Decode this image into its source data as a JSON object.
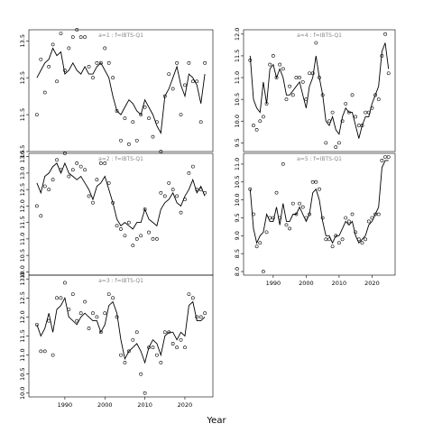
{
  "chart_data": {
    "type": "line",
    "xlabel": "Year",
    "panels": [
      {
        "title": "a=1 : f=IBTS-Q1",
        "x_ticks": [
          1990,
          2000,
          2010,
          2020
        ],
        "y_ticks": [
          10.5,
          11.5,
          12.5,
          13.5
        ],
        "y_tick_labels": [
          "10.5",
          "11.5",
          "12.5",
          "13.5"
        ],
        "xlim": [
          1981,
          2027
        ],
        "ylim": [
          10.5,
          13.8
        ],
        "points": {
          "x": [
            1983,
            1984,
            1985,
            1986,
            1987,
            1988,
            1989,
            1990,
            1991,
            1992,
            1993,
            1994,
            1995,
            1996,
            1997,
            1998,
            1999,
            2000,
            2001,
            2002,
            2003,
            2004,
            2005,
            2006,
            2007,
            2008,
            2009,
            2010,
            2011,
            2012,
            2013,
            2014,
            2015,
            2016,
            2017,
            2018,
            2019,
            2020,
            2021,
            2022,
            2023,
            2024,
            2025
          ],
          "y": [
            11.5,
            13.0,
            12.1,
            12.8,
            13.4,
            12.4,
            13.7,
            12.7,
            13.3,
            13.6,
            13.8,
            13.6,
            13.6,
            12.8,
            12.5,
            12.9,
            12.9,
            13.3,
            12.9,
            12.5,
            11.6,
            10.8,
            11.4,
            10.7,
            11.3,
            10.8,
            11.5,
            11.7,
            11.4,
            10.9,
            11.3,
            10.5,
            12.0,
            12.6,
            12.2,
            12.9,
            11.5,
            12.3,
            12.9,
            12.4,
            12.4,
            11.3,
            12.9
          ]
        },
        "line": {
          "x": [
            1983,
            1984,
            1985,
            1986,
            1987,
            1988,
            1989,
            1990,
            1991,
            1992,
            1993,
            1994,
            1995,
            1996,
            1997,
            1998,
            1999,
            2000,
            2001,
            2002,
            2003,
            2004,
            2005,
            2006,
            2007,
            2008,
            2009,
            2010,
            2011,
            2012,
            2013,
            2014,
            2015,
            2016,
            2017,
            2018,
            2019,
            2020,
            2021,
            2022,
            2023,
            2024,
            2025
          ],
          "y": [
            12.5,
            12.7,
            12.9,
            13.0,
            13.3,
            13.1,
            13.2,
            12.6,
            12.7,
            12.9,
            12.7,
            12.6,
            12.8,
            12.6,
            12.6,
            12.8,
            12.9,
            12.7,
            12.5,
            12.0,
            11.6,
            11.5,
            11.7,
            11.9,
            11.8,
            11.6,
            11.5,
            11.9,
            11.7,
            11.5,
            11.2,
            11.0,
            12.0,
            12.2,
            12.5,
            12.8,
            12.3,
            12.0,
            12.6,
            12.5,
            12.3,
            11.8,
            12.6
          ]
        }
      },
      {
        "title": "a=2 : f=IBTS-Q1",
        "x_ticks": [
          1990,
          2000,
          2010,
          2020
        ],
        "y_ticks": [
          10.0,
          10.5,
          11.0,
          11.5,
          12.0,
          12.5,
          13.0,
          13.5
        ],
        "y_tick_labels": [
          "10.0",
          "10.5",
          "11.0",
          "11.5",
          "12.0",
          "12.5",
          "13.0",
          "13.5"
        ],
        "xlim": [
          1981,
          2027
        ],
        "ylim": [
          9.9,
          13.6
        ],
        "points": {
          "x": [
            1983,
            1984,
            1985,
            1986,
            1987,
            1988,
            1989,
            1990,
            1991,
            1992,
            1993,
            1994,
            1995,
            1996,
            1997,
            1998,
            1999,
            2000,
            2001,
            2002,
            2003,
            2004,
            2005,
            2006,
            2007,
            2008,
            2009,
            2010,
            2011,
            2012,
            2013,
            2014,
            2015,
            2016,
            2017,
            2018,
            2019,
            2020,
            2021,
            2022,
            2023,
            2024,
            2025
          ],
          "y": [
            12.0,
            11.7,
            12.6,
            12.5,
            12.8,
            13.4,
            13.1,
            13.6,
            12.9,
            13.1,
            13.3,
            13.2,
            13.1,
            12.3,
            12.1,
            12.8,
            13.3,
            13.3,
            12.7,
            12.1,
            11.4,
            11.3,
            11.1,
            11.5,
            10.8,
            11.0,
            11.1,
            11.9,
            11.2,
            11.0,
            11.0,
            12.4,
            12.3,
            12.7,
            12.5,
            12.3,
            11.8,
            12.2,
            13.0,
            13.2,
            12.5,
            12.5,
            12.4
          ]
        },
        "line": {
          "x": [
            1983,
            1984,
            1985,
            1986,
            1987,
            1988,
            1989,
            1990,
            1991,
            1992,
            1993,
            1994,
            1995,
            1996,
            1997,
            1998,
            1999,
            2000,
            2001,
            2002,
            2003,
            2004,
            2005,
            2006,
            2007,
            2008,
            2009,
            2010,
            2011,
            2012,
            2013,
            2014,
            2015,
            2016,
            2017,
            2018,
            2019,
            2020,
            2021,
            2022,
            2023,
            2024,
            2025
          ],
          "y": [
            12.7,
            12.4,
            12.9,
            13.0,
            13.2,
            13.3,
            13.0,
            13.3,
            13.0,
            12.9,
            12.8,
            12.9,
            12.7,
            12.5,
            12.2,
            12.6,
            12.7,
            12.9,
            12.5,
            12.1,
            11.6,
            11.4,
            11.5,
            11.4,
            11.3,
            11.5,
            11.5,
            11.9,
            11.6,
            11.5,
            11.4,
            11.9,
            12.1,
            12.2,
            12.4,
            12.1,
            12.0,
            12.3,
            12.5,
            12.8,
            12.4,
            12.6,
            12.3
          ]
        }
      },
      {
        "title": "a=3 : f=IBTS-Q1",
        "x_ticks": [
          1990,
          2000,
          2010,
          2020
        ],
        "y_ticks": [
          10.0,
          10.5,
          11.0,
          11.5,
          12.0,
          12.5,
          13.0
        ],
        "y_tick_labels": [
          "10.0",
          "10.5",
          "11.0",
          "11.5",
          "12.0",
          "12.5",
          "13.0"
        ],
        "xlim": [
          1981,
          2027
        ],
        "ylim": [
          9.9,
          13.1
        ],
        "points": {
          "x": [
            1983,
            1984,
            1985,
            1986,
            1987,
            1988,
            1989,
            1990,
            1991,
            1992,
            1993,
            1994,
            1995,
            1996,
            1997,
            1998,
            1999,
            2000,
            2001,
            2002,
            2003,
            2004,
            2005,
            2006,
            2007,
            2008,
            2009,
            2010,
            2011,
            2012,
            2013,
            2014,
            2015,
            2016,
            2017,
            2018,
            2019,
            2020,
            2021,
            2022,
            2023,
            2024,
            2025
          ],
          "y": [
            11.8,
            11.1,
            11.1,
            11.9,
            11.0,
            12.5,
            12.5,
            12.9,
            12.2,
            12.6,
            11.9,
            12.1,
            12.4,
            11.7,
            12.1,
            12.0,
            11.6,
            12.1,
            12.6,
            12.5,
            12.0,
            11.0,
            10.8,
            11.1,
            11.4,
            11.6,
            10.5,
            10.0,
            11.2,
            11.2,
            11.0,
            10.8,
            11.6,
            11.6,
            11.3,
            11.2,
            11.4,
            11.2,
            12.6,
            12.5,
            12.0,
            12.0,
            12.1
          ]
        },
        "line": {
          "x": [
            1983,
            1984,
            1985,
            1986,
            1987,
            1988,
            1989,
            1990,
            1991,
            1992,
            1993,
            1994,
            1995,
            1996,
            1997,
            1998,
            1999,
            2000,
            2001,
            2002,
            2003,
            2004,
            2005,
            2006,
            2007,
            2008,
            2009,
            2010,
            2011,
            2012,
            2013,
            2014,
            2015,
            2016,
            2017,
            2018,
            2019,
            2020,
            2021,
            2022,
            2023,
            2024,
            2025
          ],
          "y": [
            11.8,
            11.5,
            11.7,
            12.1,
            11.6,
            12.2,
            12.3,
            12.5,
            12.0,
            11.9,
            11.8,
            12.0,
            12.1,
            12.0,
            11.9,
            11.9,
            11.6,
            11.8,
            12.3,
            12.4,
            12.1,
            11.4,
            10.9,
            11.1,
            11.2,
            11.3,
            11.1,
            10.8,
            11.2,
            11.4,
            11.3,
            11.0,
            11.5,
            11.6,
            11.6,
            11.4,
            11.6,
            11.5,
            12.3,
            12.4,
            11.9,
            11.9,
            12.0
          ]
        }
      },
      {
        "title": "a=4 : f=IBTS-Q1",
        "x_ticks": [
          1990,
          2000,
          2010,
          2020
        ],
        "y_ticks": [
          9.5,
          10.0,
          10.5,
          11.0,
          11.5,
          12.0
        ],
        "y_tick_labels": [
          "9.5",
          "10.0",
          "10.5",
          "11.0",
          "11.5",
          "12.0"
        ],
        "xlim": [
          1981,
          2027
        ],
        "ylim": [
          9.3,
          12.1
        ],
        "points": {
          "x": [
            1983,
            1984,
            1985,
            1986,
            1987,
            1988,
            1989,
            1990,
            1991,
            1992,
            1993,
            1994,
            1995,
            1996,
            1997,
            1998,
            1999,
            2000,
            2001,
            2002,
            2003,
            2004,
            2005,
            2006,
            2007,
            2008,
            2009,
            2010,
            2011,
            2012,
            2013,
            2014,
            2015,
            2016,
            2017,
            2018,
            2019,
            2020,
            2021,
            2022,
            2023,
            2024,
            2025
          ],
          "y": [
            11.4,
            9.9,
            9.8,
            10.0,
            10.1,
            10.4,
            11.3,
            11.5,
            11.0,
            11.3,
            11.2,
            10.5,
            10.8,
            10.6,
            11.0,
            11.0,
            10.9,
            10.5,
            11.1,
            11.1,
            11.8,
            11.0,
            10.6,
            9.5,
            10.0,
            10.2,
            9.4,
            9.5,
            10.0,
            10.4,
            10.2,
            10.6,
            10.1,
            9.9,
            9.9,
            10.2,
            10.2,
            10.3,
            10.6,
            10.5,
            11.5,
            12.0,
            11.1
          ]
        },
        "line": {
          "x": [
            1983,
            1984,
            1985,
            1986,
            1987,
            1988,
            1989,
            1990,
            1991,
            1992,
            1993,
            1994,
            1995,
            1996,
            1997,
            1998,
            1999,
            2000,
            2001,
            2002,
            2003,
            2004,
            2005,
            2006,
            2007,
            2008,
            2009,
            2010,
            2011,
            2012,
            2013,
            2014,
            2015,
            2016,
            2017,
            2018,
            2019,
            2020,
            2021,
            2022,
            2023,
            2024,
            2025
          ],
          "y": [
            11.5,
            10.5,
            10.3,
            10.2,
            10.9,
            10.4,
            11.2,
            11.3,
            11.0,
            11.2,
            11.0,
            10.6,
            10.6,
            10.7,
            10.8,
            10.9,
            10.6,
            10.3,
            10.8,
            11.0,
            11.5,
            11.0,
            10.6,
            10.0,
            9.9,
            10.1,
            9.8,
            9.7,
            10.1,
            10.3,
            10.2,
            10.2,
            9.9,
            9.6,
            9.9,
            10.1,
            10.1,
            10.4,
            10.6,
            10.8,
            11.6,
            11.8,
            11.2
          ]
        }
      },
      {
        "title": "a=5 : f=IBTS-Q1",
        "x_ticks": [
          1990,
          2000,
          2010,
          2020
        ],
        "y_ticks": [
          8.0,
          8.5,
          9.0,
          9.5,
          10.0,
          10.5,
          11.0
        ],
        "y_tick_labels": [
          "8.0",
          "8.5",
          "9.0",
          "9.5",
          "10.0",
          "10.5",
          "11.0"
        ],
        "xlim": [
          1981,
          2027
        ],
        "ylim": [
          7.9,
          11.3
        ],
        "points": {
          "x": [
            1983,
            1984,
            1985,
            1986,
            1987,
            1988,
            1989,
            1990,
            1991,
            1992,
            1993,
            1994,
            1995,
            1996,
            1997,
            1998,
            1999,
            2000,
            2001,
            2002,
            2003,
            2004,
            2005,
            2006,
            2007,
            2008,
            2009,
            2010,
            2011,
            2012,
            2013,
            2014,
            2015,
            2016,
            2017,
            2018,
            2019,
            2020,
            2021,
            2022,
            2023,
            2024,
            2025
          ],
          "y": [
            10.3,
            9.6,
            8.7,
            8.8,
            8.0,
            9.1,
            9.5,
            9.5,
            10.2,
            9.5,
            11.0,
            9.3,
            9.2,
            9.9,
            9.6,
            9.9,
            9.8,
            9.5,
            9.6,
            10.5,
            10.5,
            10.3,
            9.5,
            8.9,
            8.9,
            8.7,
            9.0,
            8.8,
            8.9,
            9.5,
            9.4,
            9.6,
            9.1,
            8.9,
            8.8,
            8.9,
            9.4,
            9.5,
            9.6,
            9.6,
            11.1,
            11.2,
            11.2
          ]
        },
        "line": {
          "x": [
            1983,
            1984,
            1985,
            1986,
            1987,
            1988,
            1989,
            1990,
            1991,
            1992,
            1993,
            1994,
            1995,
            1996,
            1997,
            1998,
            1999,
            2000,
            2001,
            2002,
            2003,
            2004,
            2005,
            2006,
            2007,
            2008,
            2009,
            2010,
            2011,
            2012,
            2013,
            2014,
            2015,
            2016,
            2017,
            2018,
            2019,
            2020,
            2021,
            2022,
            2023,
            2024,
            2025
          ],
          "y": [
            10.3,
            9.2,
            8.8,
            9.0,
            9.1,
            9.6,
            9.4,
            9.4,
            9.8,
            9.3,
            9.9,
            9.4,
            9.4,
            9.6,
            9.6,
            9.8,
            9.6,
            9.4,
            9.6,
            10.2,
            10.3,
            10.0,
            9.4,
            9.0,
            9.0,
            8.8,
            9.0,
            9.0,
            9.2,
            9.4,
            9.3,
            9.4,
            9.0,
            8.8,
            8.9,
            9.0,
            9.3,
            9.4,
            9.6,
            9.8,
            10.9,
            11.1,
            11.1
          ]
        }
      }
    ]
  }
}
